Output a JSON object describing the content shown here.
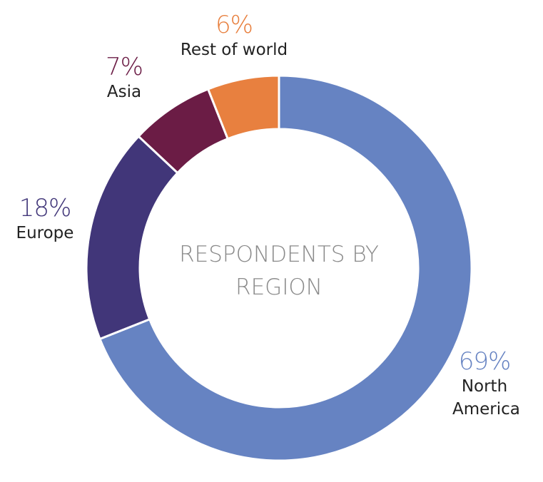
{
  "chart_data": {
    "type": "donut",
    "title": "RESPONDENTS BY REGION",
    "categories": [
      "North America",
      "Europe",
      "Asia",
      "Rest of world"
    ],
    "values": [
      69,
      18,
      7,
      6
    ],
    "value_labels": [
      "69%",
      "18%",
      "7%",
      "6%"
    ],
    "colors": [
      "#6683c2",
      "#413679",
      "#6b1c45",
      "#e8803f"
    ]
  }
}
